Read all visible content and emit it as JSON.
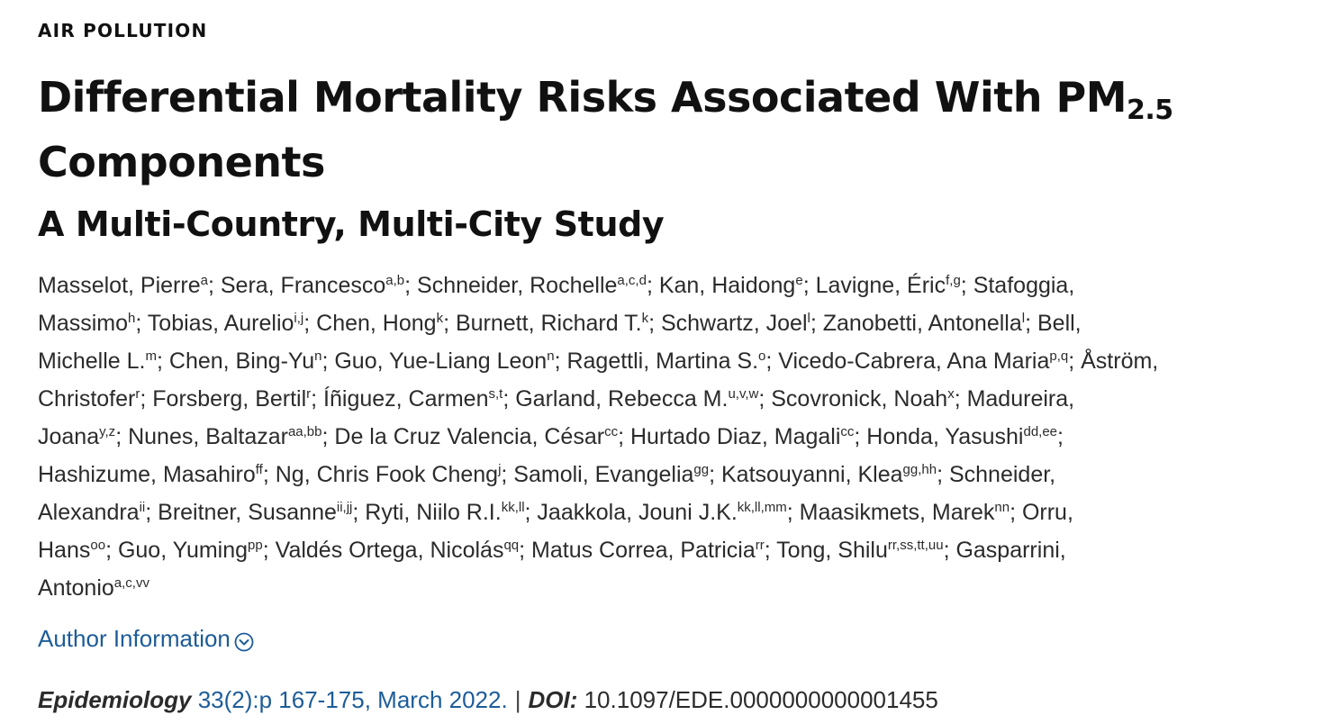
{
  "header": {
    "category": "AIR POLLUTION",
    "title_main": "Differential Mortality Risks Associated With PM",
    "title_sub": "2.5",
    "title_rest": "Components",
    "subtitle": "A Multi-Country, Multi-City Study"
  },
  "authors": {
    "lines": [
      [
        {
          "t": "Masselot, Pierre"
        },
        {
          "s": "a"
        },
        {
          "t": "; Sera, Francesco"
        },
        {
          "s": "a,b"
        },
        {
          "t": "; Schneider, Rochelle"
        },
        {
          "s": "a,c,d"
        },
        {
          "t": "; Kan, Haidong"
        },
        {
          "s": "e"
        },
        {
          "t": "; Lavigne, Éric"
        },
        {
          "s": "f,g"
        },
        {
          "t": "; Stafoggia,"
        }
      ],
      [
        {
          "t": "Massimo"
        },
        {
          "s": "h"
        },
        {
          "t": "; Tobias, Aurelio"
        },
        {
          "s": "i,j"
        },
        {
          "t": "; Chen, Hong"
        },
        {
          "s": "k"
        },
        {
          "t": "; Burnett, Richard T."
        },
        {
          "s": "k"
        },
        {
          "t": "; Schwartz, Joel"
        },
        {
          "s": "l"
        },
        {
          "t": "; Zanobetti, Antonella"
        },
        {
          "s": "l"
        },
        {
          "t": "; Bell,"
        }
      ],
      [
        {
          "t": "Michelle L."
        },
        {
          "s": "m"
        },
        {
          "t": "; Chen, Bing-Yu"
        },
        {
          "s": "n"
        },
        {
          "t": "; Guo, Yue-Liang Leon"
        },
        {
          "s": "n"
        },
        {
          "t": "; Ragettli, Martina S."
        },
        {
          "s": "o"
        },
        {
          "t": "; Vicedo-Cabrera, Ana Maria"
        },
        {
          "s": "p,q"
        },
        {
          "t": "; Åström,"
        }
      ],
      [
        {
          "t": "Christofer"
        },
        {
          "s": "r"
        },
        {
          "t": "; Forsberg, Bertil"
        },
        {
          "s": "r"
        },
        {
          "t": "; Íñiguez, Carmen"
        },
        {
          "s": "s,t"
        },
        {
          "t": "; Garland, Rebecca M."
        },
        {
          "s": "u,v,w"
        },
        {
          "t": "; Scovronick, Noah"
        },
        {
          "s": "x"
        },
        {
          "t": "; Madureira,"
        }
      ],
      [
        {
          "t": "Joana"
        },
        {
          "s": "y,z"
        },
        {
          "t": "; Nunes, Baltazar"
        },
        {
          "s": "aa,bb"
        },
        {
          "t": "; De la Cruz Valencia, César"
        },
        {
          "s": "cc"
        },
        {
          "t": "; Hurtado Diaz, Magali"
        },
        {
          "s": "cc"
        },
        {
          "t": "; Honda, Yasushi"
        },
        {
          "s": "dd,ee"
        },
        {
          "t": ";"
        }
      ],
      [
        {
          "t": "Hashizume, Masahiro"
        },
        {
          "s": "ff"
        },
        {
          "t": "; Ng, Chris Fook Cheng"
        },
        {
          "s": "j"
        },
        {
          "t": "; Samoli, Evangelia"
        },
        {
          "s": "gg"
        },
        {
          "t": "; Katsouyanni, Klea"
        },
        {
          "s": "gg,hh"
        },
        {
          "t": "; Schneider,"
        }
      ],
      [
        {
          "t": "Alexandra"
        },
        {
          "s": "ii"
        },
        {
          "t": "; Breitner, Susanne"
        },
        {
          "s": "ii,jj"
        },
        {
          "t": "; Ryti, Niilo R.I."
        },
        {
          "s": "kk,ll"
        },
        {
          "t": "; Jaakkola, Jouni J.K."
        },
        {
          "s": "kk,ll,mm"
        },
        {
          "t": "; Maasikmets, Marek"
        },
        {
          "s": "nn"
        },
        {
          "t": "; Orru,"
        }
      ],
      [
        {
          "t": "Hans"
        },
        {
          "s": "oo"
        },
        {
          "t": "; Guo, Yuming"
        },
        {
          "s": "pp"
        },
        {
          "t": "; Valdés Ortega, Nicolás"
        },
        {
          "s": "qq"
        },
        {
          "t": "; Matus Correa, Patricia"
        },
        {
          "s": "rr"
        },
        {
          "t": "; Tong, Shilu"
        },
        {
          "s": "rr,ss,tt,uu"
        },
        {
          "t": "; Gasparrini,"
        }
      ],
      [
        {
          "t": "Antonio"
        },
        {
          "s": "a,c,vv"
        }
      ]
    ]
  },
  "author_info": {
    "label": "Author Information",
    "icon": "chevron-down-circle-icon",
    "color": "#1d5c99"
  },
  "citation": {
    "journal": "Epidemiology",
    "issue": "33(2):p 167-175, March 2022.",
    "separator": "|",
    "doi_label": "DOI:",
    "doi_value": "10.1097/EDE.0000000000001455"
  },
  "colors": {
    "link": "#1d5c99",
    "text": "#2b2b2b",
    "heading": "#111111"
  }
}
